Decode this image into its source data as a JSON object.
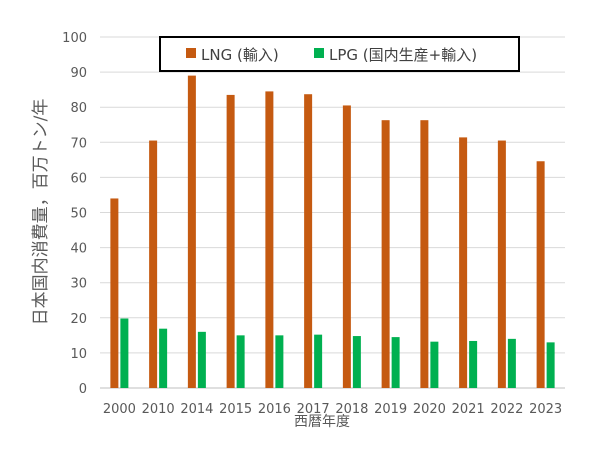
{
  "chart_data": {
    "type": "bar",
    "title": "",
    "xlabel": "西暦年度",
    "ylabel": "日本国内消費量，百万トン/年",
    "ylim": [
      0,
      100
    ],
    "yticks": [
      0,
      10,
      20,
      30,
      40,
      50,
      60,
      70,
      80,
      90,
      100
    ],
    "grid": true,
    "legend_position": "top",
    "categories": [
      "2000",
      "2010",
      "2014",
      "2015",
      "2016",
      "2017",
      "2018",
      "2019",
      "2020",
      "2021",
      "2022",
      "2023"
    ],
    "series": [
      {
        "name": "LNG (輸入)",
        "color": "#C55A11",
        "values": [
          54,
          70.5,
          89,
          83.5,
          84.5,
          83.7,
          80.5,
          76.3,
          76.3,
          71.4,
          70.5,
          64.6
        ]
      },
      {
        "name": "LPG (国内生産+輸入)",
        "color": "#00B050",
        "values": [
          19.8,
          16.9,
          16.0,
          15.0,
          15.0,
          15.2,
          14.8,
          14.5,
          13.2,
          13.4,
          14.0,
          13.0
        ]
      }
    ]
  }
}
